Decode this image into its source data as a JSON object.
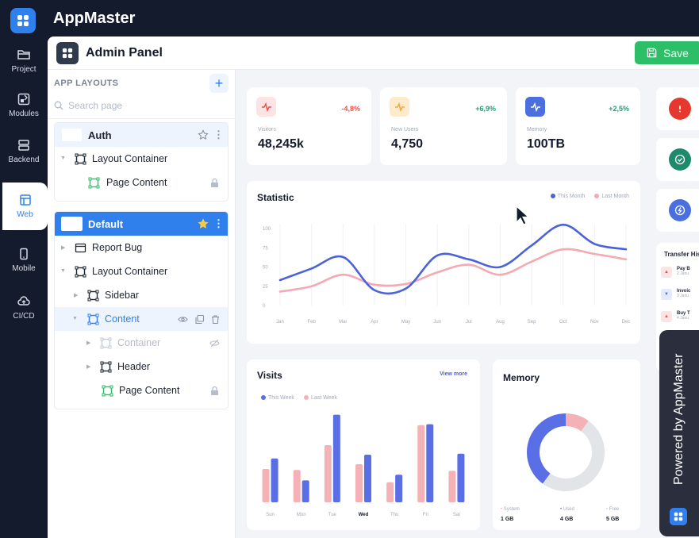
{
  "app": {
    "title": "AppMaster"
  },
  "rail": {
    "items": [
      {
        "label": "Project",
        "icon": "folder-icon"
      },
      {
        "label": "Modules",
        "icon": "modules-icon"
      },
      {
        "label": "Backend",
        "icon": "server-icon"
      },
      {
        "label": "Web",
        "icon": "web-layout-icon",
        "active": true
      },
      {
        "label": "Mobile",
        "icon": "mobile-icon"
      },
      {
        "label": "CI/CD",
        "icon": "cloud-upload-icon"
      }
    ]
  },
  "window": {
    "title": "Admin Panel",
    "save_label": "Save"
  },
  "layouts": {
    "title": "APP LAYOUTS",
    "add_label": "+",
    "search_placeholder": "Search page",
    "groups": [
      {
        "name": "Auth",
        "rows": [
          {
            "label": "Layout Container"
          },
          {
            "label": "Page Content"
          }
        ]
      },
      {
        "name": "Default",
        "rows": [
          {
            "label": "Report Bug"
          },
          {
            "label": "Layout Container"
          },
          {
            "label": "Sidebar"
          },
          {
            "label": "Content"
          },
          {
            "label": "Container"
          },
          {
            "label": "Header"
          },
          {
            "label": "Page Content"
          }
        ]
      }
    ]
  },
  "dashboard": {
    "stats": [
      {
        "label": "Visitors",
        "value": "48,245k",
        "change": "-4,8%",
        "color": "#e5534b",
        "bg": "#fde4e4"
      },
      {
        "label": "New Users",
        "value": "4,750",
        "change": "+6,9%",
        "color": "#1f9d72",
        "bg": "#fdeccb"
      },
      {
        "label": "Memory",
        "value": "100TB",
        "change": "+2,5%",
        "color": "#1f9d72",
        "bg": "#4c6fe0"
      }
    ],
    "statistic": {
      "title": "Statistic"
    },
    "visits": {
      "title": "Visits",
      "view_more": "View more"
    },
    "memory": {
      "title": "Memory",
      "legend": [
        {
          "label": "System",
          "value": "1 GB"
        },
        {
          "label": "Used",
          "value": "4 GB"
        },
        {
          "label": "Free",
          "value": "5 GB"
        }
      ]
    },
    "transfer": {
      "title": "Transfer His",
      "rows": [
        {
          "name": "Pay B",
          "sub": "2 Janu",
          "color": "#e5534b",
          "bg": "#fde4e4"
        },
        {
          "name": "Invoic",
          "sub": "3 Janu",
          "color": "#4c6fe0",
          "bg": "#e4e9fc"
        },
        {
          "name": "Buy T",
          "sub": "4 Janu",
          "color": "#e5534b",
          "bg": "#fde4e4"
        }
      ]
    }
  },
  "powered": {
    "text": "Powered by AppMaster"
  },
  "chart_data": [
    {
      "type": "line",
      "title": "Statistic",
      "x": [
        "Jan",
        "Feb",
        "Mar",
        "Apr",
        "May",
        "Jun",
        "Jul",
        "Aug",
        "Sep",
        "Oct",
        "Nov",
        "Dec"
      ],
      "yticks": [
        100,
        75,
        50,
        25,
        0
      ],
      "ylim": [
        0,
        100
      ],
      "grid": true,
      "legend_position": "top-right",
      "series": [
        {
          "name": "This Month",
          "color": "#4c62d9",
          "values": [
            33,
            48,
            63,
            20,
            22,
            65,
            60,
            50,
            78,
            105,
            80,
            73
          ]
        },
        {
          "name": "Last Month",
          "color": "#f4a9b3",
          "values": [
            18,
            25,
            40,
            27,
            28,
            43,
            53,
            40,
            57,
            73,
            67,
            60
          ]
        }
      ]
    },
    {
      "type": "bar",
      "title": "Visits",
      "categories": [
        "Sun",
        "Mon",
        "Tue",
        "Wed",
        "Thu",
        "Fri",
        "Sat"
      ],
      "ylim": [
        0,
        100
      ],
      "legend_position": "top-left",
      "series": [
        {
          "name": "This Week",
          "color": "#5a6ee6",
          "values": [
            46,
            23,
            92,
            50,
            29,
            82,
            51
          ]
        },
        {
          "name": "Last Week",
          "color": "#f4b2b6",
          "values": [
            35,
            34,
            60,
            40,
            21,
            81,
            33
          ]
        }
      ]
    },
    {
      "type": "pie",
      "title": "Memory",
      "labels": [
        "System",
        "Used",
        "Free"
      ],
      "values": [
        1,
        4,
        5
      ],
      "colors": [
        "#f4b2b6",
        "#5a6ee6",
        "#e3e4e8"
      ]
    }
  ]
}
